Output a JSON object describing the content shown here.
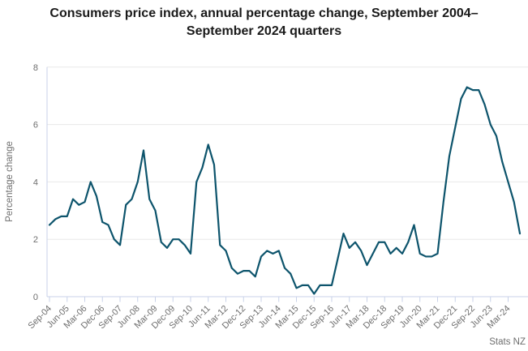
{
  "attribution": "Stats NZ",
  "chart_data": {
    "type": "line",
    "title": "Consumers price index, annual percentage change, September 2004–September 2024 quarters",
    "xlabel": "",
    "ylabel": "Percentage change",
    "ylim": [
      0,
      8
    ],
    "y_ticks": [
      0,
      2,
      4,
      6,
      8
    ],
    "grid": "horizontal gridlines only",
    "legend_position": "none",
    "line_color": "#0d546c",
    "x_tick_labels": [
      "Sep-04",
      "Jun-05",
      "Mar-06",
      "Dec-06",
      "Sep-07",
      "Jun-08",
      "Mar-09",
      "Dec-09",
      "Sep-10",
      "Jun-11",
      "Mar-12",
      "Dec-12",
      "Sep-13",
      "Jun-14",
      "Mar-15",
      "Dec-15",
      "Sep-16",
      "Jun-17",
      "Mar-18",
      "Dec-18",
      "Sep-19",
      "Jun-20",
      "Mar-21",
      "Dec-21",
      "Sep-22",
      "Jun-23",
      "Mar-24"
    ],
    "series": [
      {
        "name": "CPI annual percentage change",
        "x": [
          "Sep-04",
          "Dec-04",
          "Mar-05",
          "Jun-05",
          "Sep-05",
          "Dec-05",
          "Mar-06",
          "Jun-06",
          "Sep-06",
          "Dec-06",
          "Mar-07",
          "Jun-07",
          "Sep-07",
          "Dec-07",
          "Mar-08",
          "Jun-08",
          "Sep-08",
          "Dec-08",
          "Mar-09",
          "Jun-09",
          "Sep-09",
          "Dec-09",
          "Mar-10",
          "Jun-10",
          "Sep-10",
          "Dec-10",
          "Mar-11",
          "Jun-11",
          "Sep-11",
          "Dec-11",
          "Mar-12",
          "Jun-12",
          "Sep-12",
          "Dec-12",
          "Mar-13",
          "Jun-13",
          "Sep-13",
          "Dec-13",
          "Mar-14",
          "Jun-14",
          "Sep-14",
          "Dec-14",
          "Mar-15",
          "Jun-15",
          "Sep-15",
          "Dec-15",
          "Mar-16",
          "Jun-16",
          "Sep-16",
          "Dec-16",
          "Mar-17",
          "Jun-17",
          "Sep-17",
          "Dec-17",
          "Mar-18",
          "Jun-18",
          "Sep-18",
          "Dec-18",
          "Mar-19",
          "Jun-19",
          "Sep-19",
          "Dec-19",
          "Mar-20",
          "Jun-20",
          "Sep-20",
          "Dec-20",
          "Mar-21",
          "Jun-21",
          "Sep-21",
          "Dec-21",
          "Mar-22",
          "Jun-22",
          "Sep-22",
          "Dec-22",
          "Mar-23",
          "Jun-23",
          "Sep-23",
          "Dec-23",
          "Mar-24",
          "Jun-24",
          "Sep-24"
        ],
        "values": [
          2.5,
          2.7,
          2.8,
          2.8,
          3.4,
          3.2,
          3.3,
          4.0,
          3.5,
          2.6,
          2.5,
          2.0,
          1.8,
          3.2,
          3.4,
          4.0,
          5.1,
          3.4,
          3.0,
          1.9,
          1.7,
          2.0,
          2.0,
          1.8,
          1.5,
          4.0,
          4.5,
          5.3,
          4.6,
          1.8,
          1.6,
          1.0,
          0.8,
          0.9,
          0.9,
          0.7,
          1.4,
          1.6,
          1.5,
          1.6,
          1.0,
          0.8,
          0.3,
          0.4,
          0.4,
          0.1,
          0.4,
          0.4,
          0.4,
          1.3,
          2.2,
          1.7,
          1.9,
          1.6,
          1.1,
          1.5,
          1.9,
          1.9,
          1.5,
          1.7,
          1.5,
          1.9,
          2.5,
          1.5,
          1.4,
          1.4,
          1.5,
          3.3,
          4.9,
          5.9,
          6.9,
          7.3,
          7.2,
          7.2,
          6.7,
          6.0,
          5.6,
          4.7,
          4.0,
          3.3,
          2.2
        ]
      }
    ]
  }
}
